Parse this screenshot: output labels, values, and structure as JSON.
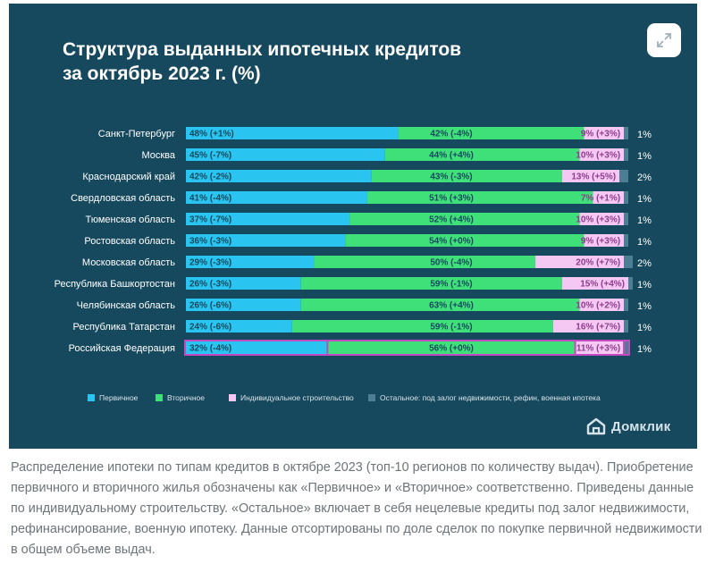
{
  "title_line1": "Структура выданных ипотечных кредитов",
  "title_line2": "за октябрь 2023 г. (%)",
  "brand": "Домклик",
  "caption": "Распределение ипотеки по типам кредитов в октябре 2023 (топ-10 регионов по количеству выдач). Приобретение первичного и вторичного жилья обозначены как «Первичное» и «Вторичное» соответственно. Приведены данные по индивидуальному строительству. «Остальное» включает в себя нецелевые кредиты под залог недвижимости, рефинансирование, военную ипотеку. Данные отсортированы по доле сделок по покупке первичной недвижимости в общем объеме выдач.",
  "colors": {
    "background": "#17495e",
    "primary": "#29c4f0",
    "secondary": "#3fe07a",
    "individual": "#f5c7f3",
    "other": "#4d7f94",
    "highlight_border": "#c548c3",
    "label_dark": "#17495e",
    "label_purple": "#8d3d8c"
  },
  "icons": [
    "expand-icon",
    "domclick-logo-icon"
  ],
  "chart_data": {
    "type": "bar",
    "orientation": "horizontal",
    "stacked": true,
    "xlim": [
      0,
      100
    ],
    "categories": [
      "Санкт-Петербург",
      "Москва",
      "Краснодарский край",
      "Свердловская область",
      "Тюменская область",
      "Ростовская область",
      "Московская область",
      "Республика Башкортостан",
      "Челябинская область",
      "Республика Татарстан",
      "Российская Федерация"
    ],
    "highlighted_category": "Российская Федерация",
    "series": [
      {
        "name": "Первичное",
        "color": "#29c4f0",
        "values": [
          48,
          45,
          42,
          41,
          37,
          36,
          29,
          26,
          26,
          24,
          32
        ],
        "labels": [
          "48% (+1%)",
          "45% (-7%)",
          "42% (-2%)",
          "41% (-4%)",
          "37% (-7%)",
          "36% (-3%)",
          "29% (-3%)",
          "26% (-3%)",
          "26% (-6%)",
          "24% (-6%)",
          "32% (-4%)"
        ]
      },
      {
        "name": "Вторичное",
        "color": "#3fe07a",
        "values": [
          42,
          44,
          43,
          51,
          52,
          54,
          50,
          59,
          63,
          59,
          56
        ],
        "labels": [
          "42% (-4%)",
          "44% (+4%)",
          "43% (-3%)",
          "51% (+3%)",
          "52% (+4%)",
          "54% (+0%)",
          "50% (-4%)",
          "59% (-1%)",
          "63% (+4%)",
          "59% (-1%)",
          "56% (+0%)"
        ]
      },
      {
        "name": "Индивидуальное строительство",
        "color": "#f5c7f3",
        "values": [
          9,
          10,
          13,
          7,
          10,
          9,
          20,
          15,
          10,
          16,
          11
        ],
        "labels": [
          "9% (+3%)",
          "10% (+3%)",
          "13% (+5%)",
          "7% (+1%)",
          "10% (+3%)",
          "9% (+3%)",
          "20% (+7%)",
          "15% (+4%)",
          "10% (+2%)",
          "16% (+7%)",
          "11% (+3%)"
        ]
      },
      {
        "name": "Остальное: под залог недвижимости, рефин, военная ипотека",
        "color": "#4d7f94",
        "values": [
          1,
          1,
          2,
          1,
          1,
          1,
          2,
          1,
          1,
          1,
          1
        ],
        "labels": [
          "1%",
          "1%",
          "2%",
          "1%",
          "1%",
          "1%",
          "2%",
          "1%",
          "1%",
          "1%",
          "1%"
        ]
      }
    ]
  }
}
